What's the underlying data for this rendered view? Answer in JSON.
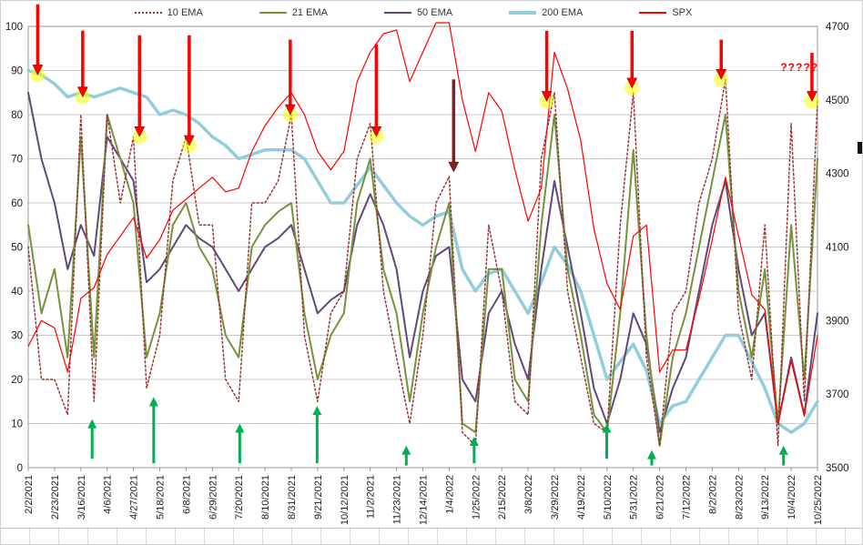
{
  "page": {
    "background": "#ffffff"
  },
  "chart_data": {
    "type": "line",
    "title": "",
    "grid": true,
    "legend_position": "top",
    "x_tick_labels": [
      "2/2/2021",
      "2/23/2021",
      "3/16/2021",
      "4/6/2021",
      "4/27/2021",
      "5/18/2021",
      "6/8/2021",
      "6/29/2021",
      "7/20/2021",
      "8/10/2021",
      "8/31/2021",
      "9/21/2021",
      "10/12/2021",
      "11/2/2021",
      "11/23/2021",
      "12/14/2021",
      "1/4/2022",
      "1/25/2022",
      "2/15/2022",
      "3/8/2022",
      "3/29/2022",
      "4/19/2022",
      "5/10/2022",
      "5/31/2022",
      "6/21/2022",
      "7/12/2022",
      "8/2/2022",
      "8/23/2022",
      "9/13/2022",
      "10/4/2022",
      "10/25/2022"
    ],
    "y_left": {
      "min": 0,
      "max": 100,
      "step": 10,
      "ticks": [
        "0",
        "10",
        "20",
        "30",
        "40",
        "50",
        "60",
        "70",
        "80",
        "90",
        "100"
      ]
    },
    "y_right": {
      "min": 3500,
      "max": 4700,
      "step": 200,
      "ticks": [
        "3500",
        "3700",
        "3900",
        "4100",
        "4300",
        "4500",
        "4700"
      ]
    },
    "series": [
      {
        "name": "10 EMA",
        "color": "#953735",
        "style": "dotted",
        "width": 1.5,
        "axis": "left",
        "values": [
          50,
          20,
          20,
          12,
          80,
          15,
          80,
          60,
          75,
          18,
          30,
          65,
          75,
          55,
          55,
          20,
          15,
          60,
          60,
          65,
          80,
          30,
          15,
          35,
          40,
          70,
          78,
          40,
          25,
          10,
          30,
          60,
          66,
          8,
          5,
          55,
          40,
          15,
          12,
          70,
          85,
          40,
          25,
          10,
          8,
          55,
          85,
          25,
          5,
          35,
          40,
          60,
          70,
          88,
          35,
          20,
          55,
          5,
          78,
          15,
          83
        ]
      },
      {
        "name": "21 EMA",
        "color": "#76933C",
        "style": "solid",
        "width": 2,
        "axis": "left",
        "values": [
          55,
          35,
          45,
          25,
          75,
          25,
          80,
          70,
          60,
          25,
          35,
          55,
          60,
          50,
          45,
          30,
          25,
          50,
          55,
          58,
          60,
          35,
          20,
          30,
          35,
          60,
          70,
          45,
          35,
          15,
          35,
          50,
          60,
          10,
          8,
          45,
          45,
          20,
          15,
          55,
          80,
          45,
          30,
          12,
          8,
          35,
          72,
          30,
          5,
          25,
          35,
          50,
          65,
          80,
          40,
          25,
          45,
          10,
          55,
          20,
          70
        ]
      },
      {
        "name": "50 EMA",
        "color": "#60497A",
        "style": "solid",
        "width": 2,
        "axis": "left",
        "values": [
          85,
          70,
          60,
          45,
          55,
          48,
          75,
          70,
          65,
          42,
          45,
          50,
          55,
          52,
          50,
          45,
          40,
          45,
          50,
          52,
          55,
          45,
          35,
          38,
          40,
          55,
          62,
          55,
          45,
          25,
          40,
          48,
          50,
          20,
          15,
          35,
          40,
          28,
          20,
          45,
          65,
          50,
          35,
          18,
          10,
          20,
          35,
          28,
          8,
          18,
          25,
          40,
          55,
          65,
          45,
          30,
          35,
          10,
          25,
          12,
          35
        ]
      },
      {
        "name": "200 EMA",
        "color": "#92CDDC",
        "style": "solid",
        "width": 3.5,
        "axis": "left",
        "values": [
          90,
          89,
          87,
          84,
          85,
          84,
          85,
          86,
          85,
          84,
          80,
          81,
          80,
          78,
          75,
          73,
          70,
          71,
          72,
          72,
          72,
          70,
          65,
          60,
          60,
          64,
          68,
          64,
          60,
          57,
          55,
          57,
          58,
          45,
          40,
          44,
          45,
          40,
          35,
          42,
          50,
          46,
          40,
          30,
          20,
          24,
          28,
          22,
          10,
          14,
          15,
          20,
          25,
          30,
          30,
          24,
          18,
          10,
          8,
          10,
          15
        ]
      },
      {
        "name": "SPX",
        "color": "#FF0000",
        "style": "solid",
        "width": 1.2,
        "axis": "right",
        "values": [
          3830,
          3900,
          3880,
          3760,
          3960,
          3990,
          4080,
          4130,
          4180,
          4070,
          4120,
          4200,
          4230,
          4260,
          4290,
          4250,
          4260,
          4360,
          4430,
          4480,
          4520,
          4460,
          4360,
          4310,
          4360,
          4550,
          4630,
          4680,
          4690,
          4550,
          4630,
          4710,
          4790,
          4500,
          4360,
          4520,
          4470,
          4310,
          4170,
          4260,
          4630,
          4530,
          4390,
          4150,
          4000,
          3930,
          4130,
          4160,
          3760,
          3820,
          3820,
          3960,
          4120,
          4290,
          4130,
          3970,
          3930,
          3620,
          3790,
          3640,
          3860
        ]
      }
    ],
    "annotations": {
      "question_text": "?????",
      "question_color": "#FF0000",
      "halo_color": "#FFFF00",
      "red_color": "#FF0000",
      "dark_red_color": "#7F2020",
      "green_color": "#00B050",
      "red_arrows": [
        {
          "x": 0.012,
          "tip": 89,
          "tail": 105,
          "halo": true,
          "dark": false
        },
        {
          "x": 0.069,
          "tip": 84,
          "tail": 99,
          "halo": true,
          "dark": false
        },
        {
          "x": 0.141,
          "tip": 75,
          "tail": 98,
          "halo": true,
          "dark": false
        },
        {
          "x": 0.204,
          "tip": 73,
          "tail": 98,
          "halo": true,
          "dark": false
        },
        {
          "x": 0.332,
          "tip": 80,
          "tail": 97,
          "halo": true,
          "dark": false
        },
        {
          "x": 0.441,
          "tip": 75,
          "tail": 96,
          "halo": true,
          "dark": false
        },
        {
          "x": 0.539,
          "tip": 67,
          "tail": 88,
          "halo": false,
          "dark": true
        },
        {
          "x": 0.657,
          "tip": 83,
          "tail": 99,
          "halo": true,
          "dark": false
        },
        {
          "x": 0.765,
          "tip": 86,
          "tail": 99,
          "halo": true,
          "dark": false
        },
        {
          "x": 0.878,
          "tip": 88,
          "tail": 97,
          "halo": true,
          "dark": false
        },
        {
          "x": 0.993,
          "tip": 83,
          "tail": 94,
          "halo": true,
          "dark": false
        }
      ],
      "green_arrows": [
        {
          "x": 0.081,
          "tip": 11,
          "tail": 2
        },
        {
          "x": 0.159,
          "tip": 16,
          "tail": 1
        },
        {
          "x": 0.268,
          "tip": 10,
          "tail": 1
        },
        {
          "x": 0.366,
          "tip": 14,
          "tail": 1
        },
        {
          "x": 0.479,
          "tip": 5,
          "tail": 0.5
        },
        {
          "x": 0.565,
          "tip": 7,
          "tail": 1
        },
        {
          "x": 0.733,
          "tip": 10,
          "tail": 2
        },
        {
          "x": 0.79,
          "tip": 4,
          "tail": 0.5
        },
        {
          "x": 0.957,
          "tip": 5,
          "tail": 0.5
        }
      ]
    }
  }
}
